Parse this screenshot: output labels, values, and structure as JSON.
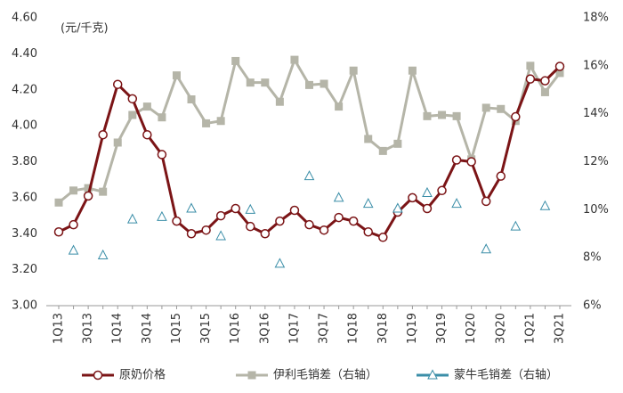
{
  "chart_data": {
    "type": "line",
    "y_label": "(元/千克)",
    "categories": [
      "1Q13",
      null,
      "3Q13",
      null,
      "1Q14",
      null,
      "3Q14",
      null,
      "1Q15",
      null,
      "3Q15",
      null,
      "1Q16",
      null,
      "3Q16",
      null,
      "1Q17",
      null,
      "3Q17",
      null,
      "1Q18",
      null,
      "3Q18",
      null,
      "1Q19",
      null,
      "3Q19",
      null,
      "1Q20",
      null,
      "3Q20",
      null,
      "1Q21",
      null,
      "3Q21"
    ],
    "series": [
      {
        "name": "原奶价格",
        "color": "#7b1416",
        "marker": "circle",
        "line": true,
        "values": [
          3.41,
          3.45,
          3.61,
          3.95,
          4.23,
          4.15,
          3.95,
          3.84,
          3.47,
          3.4,
          3.42,
          3.5,
          3.54,
          3.44,
          3.4,
          3.47,
          3.53,
          3.45,
          3.42,
          3.49,
          3.47,
          3.41,
          3.38,
          3.52,
          3.6,
          3.54,
          3.64,
          3.81,
          3.8,
          3.58,
          3.72,
          4.05,
          4.26,
          4.25,
          4.33
        ]
      },
      {
        "name": "伊利毛销差（右轴）",
        "color": "#b5b5a8",
        "marker": "square",
        "line": true,
        "axis": "y2",
        "values": [
          10.3,
          10.8,
          10.9,
          10.75,
          12.8,
          13.95,
          14.3,
          13.85,
          15.6,
          14.6,
          13.6,
          13.7,
          16.2,
          15.3,
          15.3,
          14.5,
          16.25,
          15.2,
          15.25,
          14.3,
          15.8,
          12.95,
          12.45,
          12.75,
          15.8,
          13.9,
          13.95,
          13.9,
          12.1,
          14.25,
          14.2,
          13.7,
          16.0,
          14.9,
          15.7
        ]
      },
      {
        "name": "蒙牛毛销差（右轴）",
        "color": "#3b8ea8",
        "marker": "triangle",
        "line": false,
        "axis": "y2",
        "values": [
          null,
          8.3,
          null,
          8.1,
          null,
          9.6,
          null,
          9.7,
          null,
          10.05,
          null,
          8.9,
          null,
          10.0,
          null,
          7.75,
          null,
          11.4,
          null,
          10.5,
          null,
          10.25,
          null,
          10.05,
          null,
          10.7,
          null,
          10.25,
          null,
          8.35,
          null,
          9.3,
          null,
          10.15,
          null
        ]
      }
    ],
    "ylim": [
      3.0,
      4.6
    ],
    "yticks": [
      {
        "value": 3.0,
        "label": "3.00"
      },
      {
        "value": 3.2,
        "label": "3.20"
      },
      {
        "value": 3.4,
        "label": "3.40"
      },
      {
        "value": 3.6,
        "label": "3.60"
      },
      {
        "value": 3.8,
        "label": "3.80"
      },
      {
        "value": 4.0,
        "label": "4.00"
      },
      {
        "value": 4.2,
        "label": "4.20"
      },
      {
        "value": 4.4,
        "label": "4.40"
      },
      {
        "value": 4.6,
        "label": "4.60"
      }
    ],
    "y2lim": [
      6,
      18
    ],
    "y2ticks": [
      {
        "value": 6,
        "label": "6%"
      },
      {
        "value": 8,
        "label": "8%"
      },
      {
        "value": 10,
        "label": "10%"
      },
      {
        "value": 12,
        "label": "12%"
      },
      {
        "value": 14,
        "label": "14%"
      },
      {
        "value": 16,
        "label": "16%"
      },
      {
        "value": 18,
        "label": "18%"
      }
    ],
    "grid": false,
    "legend": "bottom"
  }
}
